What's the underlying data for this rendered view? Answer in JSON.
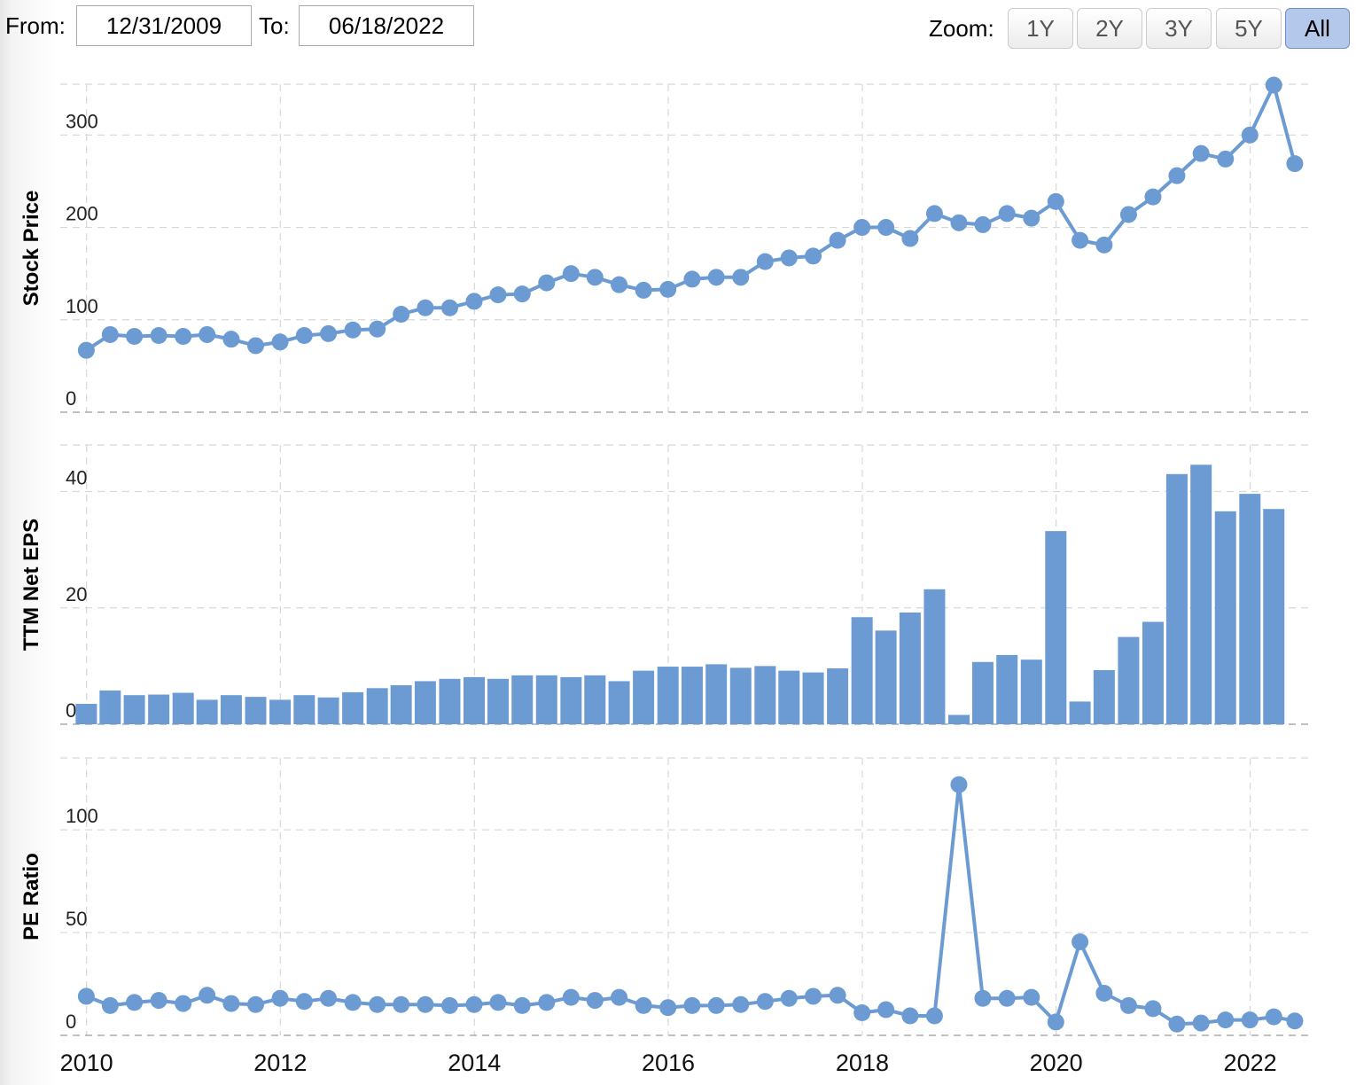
{
  "toolbar": {
    "from_label": "From:",
    "from_value": "12/31/2009",
    "to_label": "To:",
    "to_value": "06/18/2022",
    "zoom_label": "Zoom:",
    "zoom_options": [
      "1Y",
      "2Y",
      "3Y",
      "5Y",
      "All"
    ],
    "zoom_selected": "All"
  },
  "colors": {
    "series": "#6b9bd2",
    "grid": "#d8d8d8",
    "axis_text": "#222222",
    "active_button": "#b4c8ec"
  },
  "chart_data": [
    {
      "type": "line",
      "ylabel": "Stock Price",
      "ylim": [
        0,
        355
      ],
      "yticks": [
        0,
        100,
        200,
        300
      ],
      "grid": true,
      "x": [
        "2009-12-31",
        "2010-03-31",
        "2010-06-30",
        "2010-09-30",
        "2010-12-31",
        "2011-03-31",
        "2011-06-30",
        "2011-09-30",
        "2011-12-31",
        "2012-03-31",
        "2012-06-30",
        "2012-09-30",
        "2012-12-31",
        "2013-03-31",
        "2013-06-30",
        "2013-09-30",
        "2013-12-31",
        "2014-03-31",
        "2014-06-30",
        "2014-09-30",
        "2014-12-31",
        "2015-03-31",
        "2015-06-30",
        "2015-09-30",
        "2015-12-31",
        "2016-03-31",
        "2016-06-30",
        "2016-09-30",
        "2016-12-31",
        "2017-03-31",
        "2017-06-30",
        "2017-09-30",
        "2017-12-31",
        "2018-03-31",
        "2018-06-30",
        "2018-09-30",
        "2018-12-31",
        "2019-03-31",
        "2019-06-30",
        "2019-09-30",
        "2019-12-31",
        "2020-03-31",
        "2020-06-30",
        "2020-09-30",
        "2020-12-31",
        "2021-03-31",
        "2021-06-30",
        "2021-09-30",
        "2021-12-31",
        "2022-03-31",
        "2022-06-18"
      ],
      "values": [
        67,
        84,
        82,
        83,
        82,
        84,
        79,
        72,
        76,
        83,
        85,
        89,
        90,
        106,
        113,
        113,
        120,
        127,
        128,
        140,
        150,
        146,
        138,
        132,
        133,
        144,
        146,
        146,
        163,
        167,
        169,
        186,
        200,
        200,
        188,
        215,
        205,
        203,
        215,
        210,
        228,
        186,
        181,
        214,
        233,
        256,
        280,
        274,
        300,
        354,
        269
      ]
    },
    {
      "type": "bar",
      "ylabel": "TTM Net EPS",
      "ylim": [
        0,
        48
      ],
      "yticks": [
        0,
        20,
        40
      ],
      "grid": true,
      "x": [
        "2009-12-31",
        "2010-03-31",
        "2010-06-30",
        "2010-09-30",
        "2010-12-31",
        "2011-03-31",
        "2011-06-30",
        "2011-09-30",
        "2011-12-31",
        "2012-03-31",
        "2012-06-30",
        "2012-09-30",
        "2012-12-31",
        "2013-03-31",
        "2013-06-30",
        "2013-09-30",
        "2013-12-31",
        "2014-03-31",
        "2014-06-30",
        "2014-09-30",
        "2014-12-31",
        "2015-03-31",
        "2015-06-30",
        "2015-09-30",
        "2015-12-31",
        "2016-03-31",
        "2016-06-30",
        "2016-09-30",
        "2016-12-31",
        "2017-03-31",
        "2017-06-30",
        "2017-09-30",
        "2017-12-31",
        "2018-03-31",
        "2018-06-30",
        "2018-09-30",
        "2018-12-31",
        "2019-03-31",
        "2019-06-30",
        "2019-09-30",
        "2019-12-31",
        "2020-03-31",
        "2020-06-30",
        "2020-09-30",
        "2020-12-31",
        "2021-03-31",
        "2021-06-30",
        "2021-09-30",
        "2021-12-31",
        "2022-03-31"
      ],
      "values": [
        3.5,
        5.8,
        5.0,
        5.1,
        5.4,
        4.2,
        5.0,
        4.7,
        4.2,
        5.0,
        4.6,
        5.5,
        6.2,
        6.7,
        7.4,
        7.8,
        8.1,
        7.8,
        8.4,
        8.4,
        8.1,
        8.4,
        7.4,
        9.2,
        9.9,
        9.9,
        10.3,
        9.7,
        10.0,
        9.2,
        8.9,
        9.6,
        18.4,
        16.1,
        19.2,
        23.2,
        1.6,
        10.7,
        11.9,
        11.1,
        33.2,
        3.9,
        9.3,
        15.0,
        17.6,
        43.0,
        44.6,
        36.6,
        39.6,
        37.0
      ]
    },
    {
      "type": "line",
      "ylabel": "PE Ratio",
      "ylim": [
        0,
        135
      ],
      "yticks": [
        0,
        50,
        100
      ],
      "grid": true,
      "xticks": [
        "2010",
        "2012",
        "2014",
        "2016",
        "2018",
        "2020",
        "2022"
      ],
      "x": [
        "2009-12-31",
        "2010-03-31",
        "2010-06-30",
        "2010-09-30",
        "2010-12-31",
        "2011-03-31",
        "2011-06-30",
        "2011-09-30",
        "2011-12-31",
        "2012-03-31",
        "2012-06-30",
        "2012-09-30",
        "2012-12-31",
        "2013-03-31",
        "2013-06-30",
        "2013-09-30",
        "2013-12-31",
        "2014-03-31",
        "2014-06-30",
        "2014-09-30",
        "2014-12-31",
        "2015-03-31",
        "2015-06-30",
        "2015-09-30",
        "2015-12-31",
        "2016-03-31",
        "2016-06-30",
        "2016-09-30",
        "2016-12-31",
        "2017-03-31",
        "2017-06-30",
        "2017-09-30",
        "2017-12-31",
        "2018-03-31",
        "2018-06-30",
        "2018-09-30",
        "2018-12-31",
        "2019-03-31",
        "2019-06-30",
        "2019-09-30",
        "2019-12-31",
        "2020-03-31",
        "2020-06-30",
        "2020-09-30",
        "2020-12-31",
        "2021-03-31",
        "2021-06-30",
        "2021-09-30",
        "2021-12-31",
        "2022-03-31",
        "2022-06-18"
      ],
      "values": [
        19,
        14.5,
        16,
        17,
        15.5,
        19.5,
        15.5,
        15,
        18,
        16.5,
        18,
        16,
        15,
        15,
        15,
        14.5,
        15,
        16,
        14.5,
        16,
        18.5,
        17,
        18.5,
        14.5,
        13.5,
        14.5,
        14.5,
        15,
        16.5,
        18,
        19,
        19.5,
        11,
        12.5,
        9.5,
        9.5,
        122,
        18,
        18,
        18.5,
        6.5,
        45.5,
        20.5,
        14.5,
        13,
        5.5,
        6,
        7.5,
        7.5,
        9,
        7
      ]
    }
  ]
}
